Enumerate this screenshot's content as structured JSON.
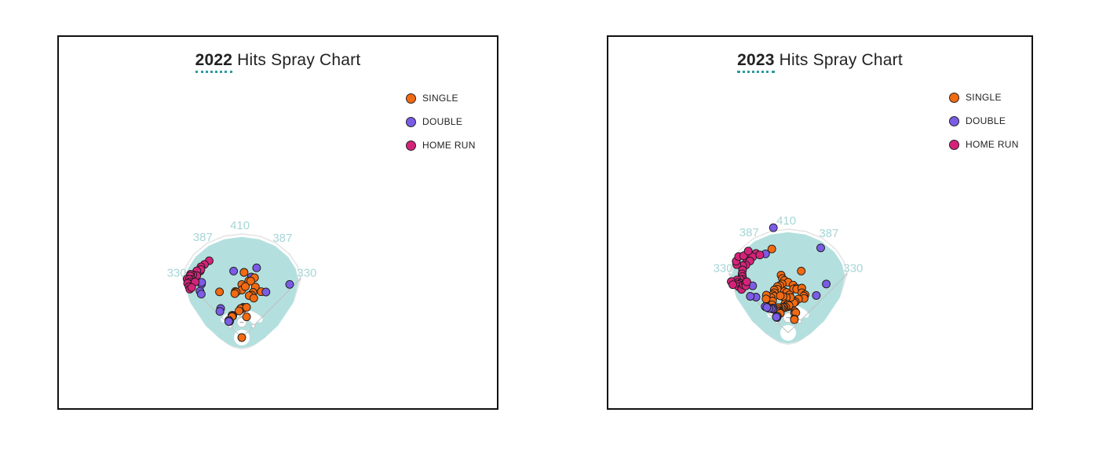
{
  "colors": {
    "single": "#f26a11",
    "double": "#7b5ce6",
    "home_run": "#d6237a",
    "field": "#b3e0de",
    "title_accent": "#2a9aa0",
    "distance_label": "#a7d5d6"
  },
  "chart_data": [
    {
      "type": "scatter",
      "title_year": "2022",
      "title_rest": "Hits Spray Chart",
      "legend": [
        {
          "key": "single",
          "label": "SINGLE"
        },
        {
          "key": "double",
          "label": "DOUBLE"
        },
        {
          "key": "home_run",
          "label": "HOME RUN"
        }
      ],
      "fence_distances": {
        "left_line": "330",
        "left_center": "387",
        "center": "410",
        "right_center": "387",
        "right_line": "330"
      },
      "units": "feet from home plate; x = spray angle in degrees (0 = center field, negative = left field), r = distance",
      "points": [
        {
          "x": -7,
          "r": 265,
          "type": "double"
        },
        {
          "x": 2,
          "r": 258,
          "type": "single"
        },
        {
          "x": 2,
          "r": 258,
          "type": "single"
        },
        {
          "x": 12,
          "r": 282,
          "type": "double"
        },
        {
          "x": 9,
          "r": 242,
          "type": "double"
        },
        {
          "x": 12,
          "r": 242,
          "type": "single"
        },
        {
          "x": 7,
          "r": 226,
          "type": "single"
        },
        {
          "x": 9,
          "r": 226,
          "type": "single"
        },
        {
          "x": 0,
          "r": 210,
          "type": "single"
        },
        {
          "x": 0,
          "r": 188,
          "type": "single"
        },
        {
          "x": 4,
          "r": 202,
          "type": "single"
        },
        {
          "x": 15,
          "r": 207,
          "type": "single"
        },
        {
          "x": 14,
          "r": 184,
          "type": "single"
        },
        {
          "x": 13,
          "r": 172,
          "type": "single"
        },
        {
          "x": 10,
          "r": 168,
          "type": "single"
        },
        {
          "x": 17,
          "r": 163,
          "type": "single"
        },
        {
          "x": 23,
          "r": 197,
          "type": "single"
        },
        {
          "x": 28,
          "r": 204,
          "type": "double"
        },
        {
          "x": 42,
          "r": 283,
          "type": "double"
        },
        {
          "x": -8,
          "r": 184,
          "type": "single"
        },
        {
          "x": -7,
          "r": 181,
          "type": "single"
        },
        {
          "x": -9,
          "r": 176,
          "type": "single"
        },
        {
          "x": -26,
          "r": 201,
          "type": "single"
        },
        {
          "x": 3,
          "r": 120,
          "type": "single"
        },
        {
          "x": 1,
          "r": 116,
          "type": "single"
        },
        {
          "x": 2,
          "r": 114,
          "type": "single"
        },
        {
          "x": -2,
          "r": 115,
          "type": "single"
        },
        {
          "x": 9,
          "r": 121,
          "type": "single"
        },
        {
          "x": -6,
          "r": 106,
          "type": "single"
        },
        {
          "x": 13,
          "r": 84,
          "type": "single"
        },
        {
          "x": -22,
          "r": 95,
          "type": "single"
        },
        {
          "x": -24,
          "r": 96,
          "type": "single"
        },
        {
          "x": -23,
          "r": 92,
          "type": "single"
        },
        {
          "x": -25,
          "r": 91,
          "type": "single"
        },
        {
          "x": -37,
          "r": 85,
          "type": "double"
        },
        {
          "x": -37,
          "r": 80,
          "type": "double"
        },
        {
          "x": -39,
          "r": 82,
          "type": "double"
        },
        {
          "x": -36,
          "r": 142,
          "type": "double"
        },
        {
          "x": -40,
          "r": 135,
          "type": "double"
        },
        {
          "x": -42,
          "r": 247,
          "type": "double"
        },
        {
          "x": -43,
          "r": 235,
          "type": "double"
        },
        {
          "x": -37,
          "r": 265,
          "type": "double"
        },
        {
          "x": -36,
          "r": 270,
          "type": "double"
        },
        {
          "x": 0,
          "r": 0,
          "type": "single"
        },
        {
          "x": -23,
          "r": 330,
          "type": "home_run"
        },
        {
          "x": -27,
          "r": 325,
          "type": "home_run"
        },
        {
          "x": -32,
          "r": 310,
          "type": "home_run"
        },
        {
          "x": -30,
          "r": 323,
          "type": "home_run"
        },
        {
          "x": -31,
          "r": 314,
          "type": "home_run"
        },
        {
          "x": -34,
          "r": 318,
          "type": "home_run"
        },
        {
          "x": -36,
          "r": 303,
          "type": "home_run"
        },
        {
          "x": -38,
          "r": 315,
          "type": "home_run"
        },
        {
          "x": -39,
          "r": 322,
          "type": "home_run"
        },
        {
          "x": -40,
          "r": 318,
          "type": "home_run"
        },
        {
          "x": -41,
          "r": 305,
          "type": "home_run"
        },
        {
          "x": -43,
          "r": 317,
          "type": "home_run"
        },
        {
          "x": -42,
          "r": 310,
          "type": "home_run"
        },
        {
          "x": -43,
          "r": 301,
          "type": "home_run"
        },
        {
          "x": -44,
          "r": 296,
          "type": "home_run"
        },
        {
          "x": -45,
          "r": 303,
          "type": "home_run"
        },
        {
          "x": -46,
          "r": 290,
          "type": "home_run"
        },
        {
          "x": -40,
          "r": 287,
          "type": "home_run"
        },
        {
          "x": -47,
          "r": 281,
          "type": "home_run"
        },
        {
          "x": -45,
          "r": 280,
          "type": "home_run"
        }
      ]
    },
    {
      "type": "scatter",
      "title_year": "2023",
      "title_rest": "Hits Spray Chart",
      "legend": [
        {
          "key": "single",
          "label": "SINGLE"
        },
        {
          "key": "double",
          "label": "DOUBLE"
        },
        {
          "key": "home_run",
          "label": "HOME RUN"
        }
      ],
      "fence_distances": {
        "left_line": "330",
        "left_center": "387",
        "center": "410",
        "right_center": "387",
        "right_line": "330"
      },
      "units": "feet from home plate; x = spray angle in degrees (0 = center field, negative = left field), r = distance",
      "points": [
        {
          "x": -8,
          "r": 420,
          "type": "double"
        },
        {
          "x": 21,
          "r": 360,
          "type": "double"
        },
        {
          "x": -11,
          "r": 338,
          "type": "single"
        },
        {
          "x": -16,
          "r": 325,
          "type": "double"
        },
        {
          "x": 12,
          "r": 250,
          "type": "single"
        },
        {
          "x": -7,
          "r": 230,
          "type": "single"
        },
        {
          "x": -6,
          "r": 216,
          "type": "single"
        },
        {
          "x": -4,
          "r": 208,
          "type": "single"
        },
        {
          "x": 0,
          "r": 200,
          "type": "single"
        },
        {
          "x": -7,
          "r": 195,
          "type": "single"
        },
        {
          "x": -10,
          "r": 190,
          "type": "single"
        },
        {
          "x": 6,
          "r": 190,
          "type": "single"
        },
        {
          "x": 10,
          "r": 180,
          "type": "single"
        },
        {
          "x": 7,
          "r": 175,
          "type": "single"
        },
        {
          "x": 11,
          "r": 176,
          "type": "single"
        },
        {
          "x": 17,
          "r": 185,
          "type": "single"
        },
        {
          "x": 19,
          "r": 168,
          "type": "single"
        },
        {
          "x": 24,
          "r": 165,
          "type": "single"
        },
        {
          "x": 23,
          "r": 158,
          "type": "single"
        },
        {
          "x": 25,
          "r": 150,
          "type": "single"
        },
        {
          "x": 17,
          "r": 140,
          "type": "single"
        },
        {
          "x": 13,
          "r": 126,
          "type": "single"
        },
        {
          "x": 11,
          "r": 121,
          "type": "single"
        },
        {
          "x": 37,
          "r": 185,
          "type": "double"
        },
        {
          "x": 38,
          "r": 245,
          "type": "double"
        },
        {
          "x": -16,
          "r": 180,
          "type": "single"
        },
        {
          "x": -13,
          "r": 188,
          "type": "single"
        },
        {
          "x": -14,
          "r": 178,
          "type": "single"
        },
        {
          "x": -18,
          "r": 178,
          "type": "single"
        },
        {
          "x": -19,
          "r": 168,
          "type": "single"
        },
        {
          "x": -22,
          "r": 162,
          "type": "single"
        },
        {
          "x": -21,
          "r": 155,
          "type": "single"
        },
        {
          "x": -26,
          "r": 155,
          "type": "single"
        },
        {
          "x": -5,
          "r": 165,
          "type": "single"
        },
        {
          "x": -2,
          "r": 160,
          "type": "single"
        },
        {
          "x": 2,
          "r": 150,
          "type": "single"
        },
        {
          "x": 4,
          "r": 140,
          "type": "single"
        },
        {
          "x": -3,
          "r": 140,
          "type": "single"
        },
        {
          "x": -8,
          "r": 145,
          "type": "single"
        },
        {
          "x": -12,
          "r": 150,
          "type": "single"
        },
        {
          "x": -30,
          "r": 172,
          "type": "single"
        },
        {
          "x": -26,
          "r": 140,
          "type": "single"
        },
        {
          "x": -33,
          "r": 160,
          "type": "single"
        },
        {
          "x": -30,
          "r": 128,
          "type": "single"
        },
        {
          "x": -6,
          "r": 116,
          "type": "single"
        },
        {
          "x": -3,
          "r": 110,
          "type": "single"
        },
        {
          "x": -1,
          "r": 103,
          "type": "single"
        },
        {
          "x": 0,
          "r": 112,
          "type": "single"
        },
        {
          "x": 2,
          "r": 108,
          "type": "single"
        },
        {
          "x": -5,
          "r": 102,
          "type": "single"
        },
        {
          "x": -9,
          "r": 100,
          "type": "single"
        },
        {
          "x": -11,
          "r": 103,
          "type": "single"
        },
        {
          "x": -14,
          "r": 100,
          "type": "single"
        },
        {
          "x": -16,
          "r": 104,
          "type": "single"
        },
        {
          "x": -20,
          "r": 104,
          "type": "single"
        },
        {
          "x": -22,
          "r": 108,
          "type": "single"
        },
        {
          "x": -23,
          "r": 97,
          "type": "single"
        },
        {
          "x": -25,
          "r": 103,
          "type": "single"
        },
        {
          "x": -26,
          "r": 96,
          "type": "single"
        },
        {
          "x": -24,
          "r": 88,
          "type": "single"
        },
        {
          "x": -22,
          "r": 83,
          "type": "single"
        },
        {
          "x": 17,
          "r": 89,
          "type": "single"
        },
        {
          "x": 18,
          "r": 82,
          "type": "single"
        },
        {
          "x": 21,
          "r": 85,
          "type": "single"
        },
        {
          "x": 24,
          "r": 60,
          "type": "single"
        },
        {
          "x": 25,
          "r": 58,
          "type": "single"
        },
        {
          "x": -31,
          "r": 115,
          "type": "double"
        },
        {
          "x": -33,
          "r": 112,
          "type": "double"
        },
        {
          "x": -35,
          "r": 117,
          "type": "double"
        },
        {
          "x": -38,
          "r": 123,
          "type": "double"
        },
        {
          "x": -39,
          "r": 133,
          "type": "double"
        },
        {
          "x": -41,
          "r": 138,
          "type": "double"
        },
        {
          "x": -40,
          "r": 131,
          "type": "double"
        },
        {
          "x": -35,
          "r": 80,
          "type": "double"
        },
        {
          "x": -33,
          "r": 78,
          "type": "double"
        },
        {
          "x": -36,
          "r": 75,
          "type": "double"
        },
        {
          "x": -37,
          "r": 78,
          "type": "double"
        },
        {
          "x": -42,
          "r": 190,
          "type": "double"
        },
        {
          "x": -46,
          "r": 208,
          "type": "double"
        },
        {
          "x": -37,
          "r": 233,
          "type": "double"
        },
        {
          "x": -28,
          "r": 345,
          "type": "home_run"
        },
        {
          "x": -22,
          "r": 339,
          "type": "home_run"
        },
        {
          "x": -25,
          "r": 332,
          "type": "home_run"
        },
        {
          "x": -20,
          "r": 328,
          "type": "home_run"
        },
        {
          "x": -30,
          "r": 328,
          "type": "home_run"
        },
        {
          "x": -28,
          "r": 322,
          "type": "home_run"
        },
        {
          "x": -32,
          "r": 316,
          "type": "home_run"
        },
        {
          "x": -34,
          "r": 321,
          "type": "home_run"
        },
        {
          "x": -36,
          "r": 307,
          "type": "home_run"
        },
        {
          "x": -38,
          "r": 296,
          "type": "home_run"
        },
        {
          "x": -39,
          "r": 287,
          "type": "home_run"
        },
        {
          "x": -40,
          "r": 276,
          "type": "home_run"
        },
        {
          "x": -41,
          "r": 269,
          "type": "home_run"
        },
        {
          "x": -42,
          "r": 284,
          "type": "home_run"
        },
        {
          "x": -44,
          "r": 291,
          "type": "home_run"
        },
        {
          "x": -45,
          "r": 282,
          "type": "home_run"
        },
        {
          "x": -44,
          "r": 272,
          "type": "home_run"
        },
        {
          "x": -45,
          "r": 263,
          "type": "home_run"
        },
        {
          "x": -46,
          "r": 275,
          "type": "home_run"
        },
        {
          "x": -47,
          "r": 268,
          "type": "home_run"
        },
        {
          "x": -46,
          "r": 256,
          "type": "home_run"
        },
        {
          "x": -47,
          "r": 252,
          "type": "home_run"
        },
        {
          "x": -43,
          "r": 260,
          "type": "home_run"
        },
        {
          "x": -41,
          "r": 258,
          "type": "home_run"
        },
        {
          "x": -42,
          "r": 250,
          "type": "home_run"
        },
        {
          "x": -39,
          "r": 260,
          "type": "home_run"
        },
        {
          "x": -48,
          "r": 303,
          "type": "home_run"
        },
        {
          "x": -49,
          "r": 290,
          "type": "home_run"
        },
        {
          "x": -37,
          "r": 338,
          "type": "home_run"
        },
        {
          "x": -36,
          "r": 350,
          "type": "home_run"
        },
        {
          "x": -33,
          "r": 360,
          "type": "home_run"
        },
        {
          "x": -30,
          "r": 352,
          "type": "home_run"
        },
        {
          "x": -26,
          "r": 360,
          "type": "home_run"
        }
      ]
    }
  ]
}
